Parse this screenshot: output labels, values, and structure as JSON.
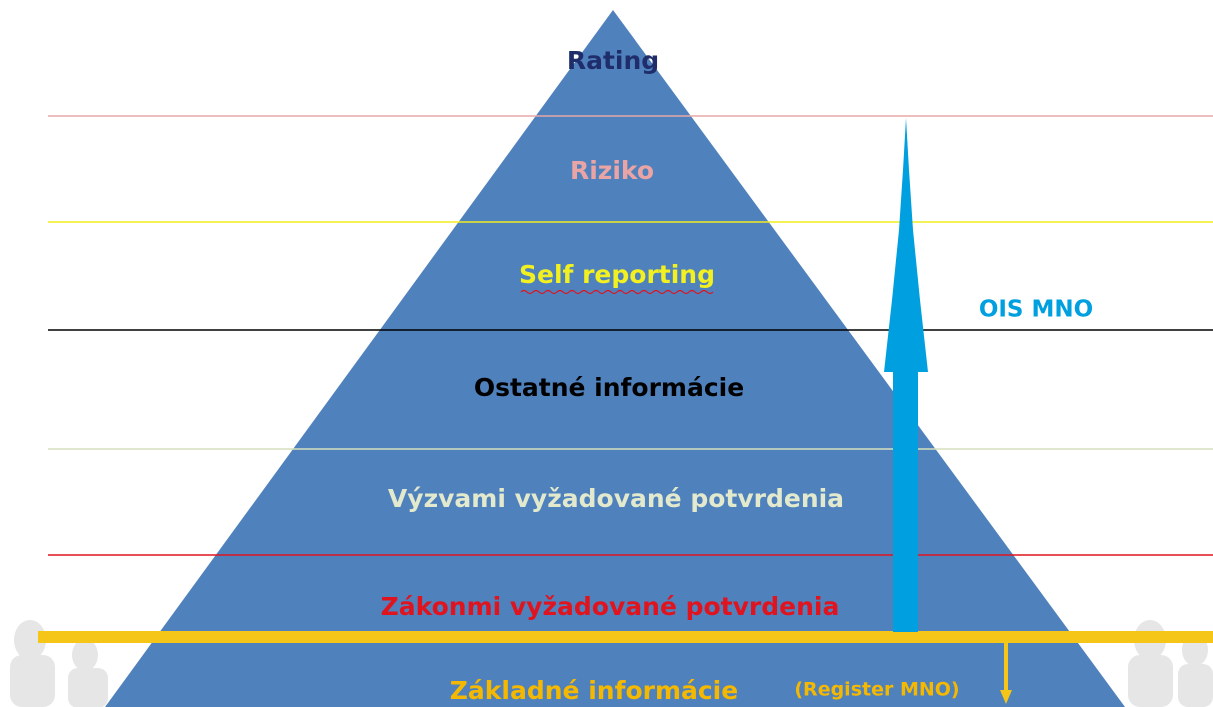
{
  "levels": [
    {
      "label": "Rating"
    },
    {
      "label": "Riziko"
    },
    {
      "label": "Self reporting"
    },
    {
      "label": "Ostatné informácie"
    },
    {
      "label": "Výzvami vyžadované potvrdenia"
    },
    {
      "label": "Zákonmi vyžadované potvrdenia"
    },
    {
      "label": "Základné informácie"
    }
  ],
  "register_label": "(Register MNO)",
  "arrow_label": "OIS MNO"
}
